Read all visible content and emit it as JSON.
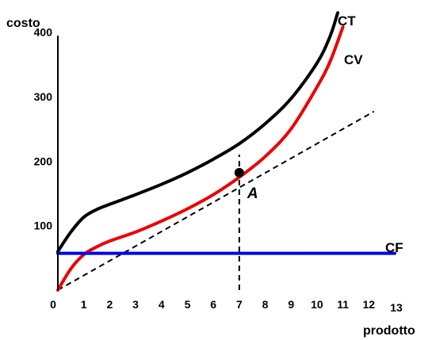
{
  "chart_data": {
    "type": "line",
    "title": "",
    "xlabel": "prodotto",
    "ylabel": "costo",
    "xlim": [
      0,
      13
    ],
    "ylim": [
      0,
      440
    ],
    "x_ticks": [
      "0",
      "1",
      "2",
      "3",
      "4",
      "5",
      "6",
      "7",
      "8",
      "9",
      "10",
      "11",
      "12",
      "13"
    ],
    "y_ticks": [
      "100",
      "200",
      "300",
      "400"
    ],
    "grid": false,
    "series": [
      {
        "name": "CT",
        "color": "#000000",
        "points": [
          [
            0,
            60
          ],
          [
            0.5,
            90
          ],
          [
            1,
            113
          ],
          [
            1.5,
            125
          ],
          [
            2,
            133
          ],
          [
            3,
            148
          ],
          [
            4,
            164
          ],
          [
            5,
            182
          ],
          [
            6,
            203
          ],
          [
            7,
            227
          ],
          [
            8,
            258
          ],
          [
            9,
            297
          ],
          [
            10,
            352
          ],
          [
            10.5,
            393
          ],
          [
            10.8,
            430
          ]
        ]
      },
      {
        "name": "CV",
        "color": "#ee0000",
        "points": [
          [
            0,
            0
          ],
          [
            0.5,
            33
          ],
          [
            1,
            55
          ],
          [
            1.5,
            67
          ],
          [
            2,
            76
          ],
          [
            3,
            90
          ],
          [
            4,
            107
          ],
          [
            5,
            126
          ],
          [
            6,
            148
          ],
          [
            7,
            175
          ],
          [
            8,
            207
          ],
          [
            9,
            250
          ],
          [
            10,
            315
          ],
          [
            10.5,
            354
          ],
          [
            11,
            408
          ]
        ]
      },
      {
        "name": "CF",
        "color": "#0000ee",
        "points": [
          [
            0,
            57
          ],
          [
            13,
            57
          ]
        ]
      }
    ],
    "reference_lines": [
      {
        "from": [
          0,
          0
        ],
        "to": [
          12.2,
          277
        ],
        "style": "dashed",
        "color": "#000000"
      },
      {
        "from": [
          7,
          0
        ],
        "to": [
          7,
          210
        ],
        "style": "dashed",
        "color": "#000000"
      }
    ],
    "annotations": [
      {
        "label": "A",
        "x": 7,
        "y": 182
      }
    ]
  }
}
